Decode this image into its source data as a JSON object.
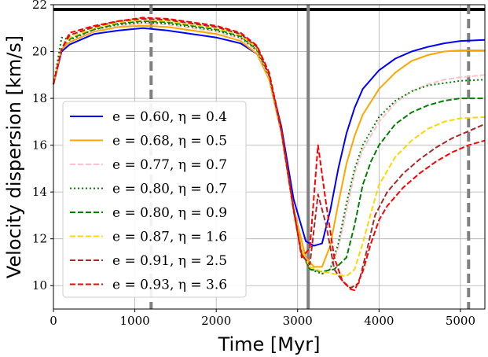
{
  "chart_data": {
    "type": "line",
    "xlabel": "Time [Myr]",
    "ylabel": "Velocity dispersion [km/s]",
    "xlim": [
      0,
      5300
    ],
    "ylim": [
      9,
      22
    ],
    "xticks": [
      0,
      1000,
      2000,
      3000,
      4000,
      5000
    ],
    "yticks": [
      10,
      12,
      14,
      16,
      18,
      20,
      22
    ],
    "grid": true,
    "legend_position": "lower-left",
    "hlines": [
      {
        "y": 21.8,
        "color": "#000000",
        "style": "solid"
      }
    ],
    "vlines": [
      {
        "x": 1200,
        "color": "#808080",
        "style": "dashed"
      },
      {
        "x": 3130,
        "color": "#808080",
        "style": "solid"
      },
      {
        "x": 5100,
        "color": "#808080",
        "style": "dashed"
      }
    ],
    "series": [
      {
        "name": "e = 0.60, η = 0.4",
        "color": "#0000ff",
        "dash": "solid",
        "x": [
          0,
          100,
          200,
          500,
          800,
          1100,
          1400,
          1700,
          2000,
          2300,
          2500,
          2650,
          2800,
          2950,
          3100,
          3200,
          3300,
          3400,
          3500,
          3600,
          3700,
          3800,
          4000,
          4200,
          4400,
          4600,
          4800,
          5000,
          5300
        ],
        "y": [
          18.6,
          20.0,
          20.3,
          20.75,
          20.9,
          21.0,
          20.9,
          20.75,
          20.6,
          20.35,
          19.9,
          18.9,
          16.8,
          13.7,
          11.9,
          11.7,
          11.8,
          13.2,
          15.0,
          16.5,
          17.6,
          18.4,
          19.2,
          19.7,
          20.0,
          20.2,
          20.35,
          20.45,
          20.5
        ]
      },
      {
        "name": "e = 0.68, η = 0.5",
        "color": "#ffa500",
        "dash": "solid",
        "x": [
          0,
          100,
          200,
          500,
          800,
          1100,
          1400,
          1700,
          2000,
          2300,
          2500,
          2650,
          2800,
          2950,
          3100,
          3200,
          3300,
          3400,
          3500,
          3600,
          3700,
          3800,
          4000,
          4200,
          4400,
          4600,
          4800,
          5000,
          5300
        ],
        "y": [
          18.6,
          20.1,
          20.4,
          20.85,
          21.05,
          21.1,
          21.05,
          20.9,
          20.75,
          20.45,
          19.9,
          18.8,
          16.5,
          13.3,
          11.2,
          10.8,
          10.8,
          11.7,
          13.5,
          15.2,
          16.4,
          17.3,
          18.4,
          19.1,
          19.6,
          19.85,
          20.0,
          20.05,
          20.05
        ]
      },
      {
        "name": "e = 0.77, η = 0.7",
        "color": "#ffc0cb",
        "dash": "dashed",
        "x": [
          0,
          100,
          200,
          500,
          800,
          1100,
          1400,
          1700,
          2000,
          2300,
          2500,
          2650,
          2800,
          2950,
          3050,
          3150,
          3300,
          3400,
          3500,
          3600,
          3700,
          3800,
          4000,
          4200,
          4400,
          4600,
          4800,
          5000,
          5300
        ],
        "y": [
          18.6,
          20.1,
          20.5,
          20.9,
          21.1,
          21.2,
          21.15,
          21.0,
          20.85,
          20.55,
          20.0,
          18.9,
          16.5,
          13.2,
          11.5,
          10.8,
          10.5,
          10.7,
          11.6,
          13.2,
          14.8,
          15.8,
          17.0,
          17.8,
          18.3,
          18.6,
          18.8,
          18.9,
          19.0
        ]
      },
      {
        "name": "e = 0.80, η = 0.7",
        "color": "#008000",
        "dash": "dotted",
        "x": [
          0,
          100,
          200,
          500,
          800,
          1100,
          1400,
          1700,
          2000,
          2300,
          2500,
          2650,
          2800,
          2950,
          3050,
          3150,
          3300,
          3400,
          3500,
          3600,
          3700,
          3800,
          4000,
          4200,
          4400,
          4600,
          4800,
          5000,
          5300
        ],
        "y": [
          18.6,
          20.6,
          20.5,
          20.95,
          21.15,
          21.25,
          21.2,
          21.05,
          20.9,
          20.6,
          20.05,
          18.95,
          16.6,
          13.3,
          11.5,
          10.7,
          10.5,
          10.7,
          11.8,
          13.5,
          15.0,
          16.0,
          17.2,
          17.9,
          18.3,
          18.55,
          18.65,
          18.75,
          18.8
        ]
      },
      {
        "name": "e = 0.80, η = 0.9",
        "color": "#008000",
        "dash": "dashed",
        "x": [
          0,
          100,
          200,
          500,
          800,
          1100,
          1400,
          1700,
          2000,
          2300,
          2500,
          2650,
          2800,
          2950,
          3050,
          3150,
          3300,
          3450,
          3600,
          3700,
          3800,
          3900,
          4000,
          4200,
          4400,
          4600,
          4800,
          5000,
          5300
        ],
        "y": [
          18.6,
          20.1,
          20.55,
          20.95,
          21.2,
          21.3,
          21.25,
          21.1,
          20.95,
          20.65,
          20.1,
          19.0,
          16.6,
          13.2,
          11.4,
          10.7,
          10.6,
          10.7,
          11.2,
          12.6,
          14.3,
          15.3,
          16.0,
          16.9,
          17.4,
          17.7,
          17.9,
          18.0,
          18.0
        ]
      },
      {
        "name": "e = 0.87, η = 1.6",
        "color": "#ffd700",
        "dash": "dashed",
        "x": [
          0,
          100,
          200,
          500,
          800,
          1100,
          1400,
          1700,
          2000,
          2300,
          2500,
          2650,
          2800,
          2950,
          3050,
          3150,
          3300,
          3450,
          3600,
          3700,
          3800,
          3900,
          4000,
          4200,
          4400,
          4600,
          4800,
          5000,
          5300
        ],
        "y": [
          18.6,
          20.1,
          20.6,
          21.0,
          21.25,
          21.35,
          21.3,
          21.15,
          21.0,
          20.7,
          20.15,
          19.0,
          16.6,
          13.2,
          11.5,
          10.8,
          10.6,
          10.5,
          10.4,
          10.7,
          11.8,
          13.1,
          14.3,
          15.5,
          16.2,
          16.7,
          17.0,
          17.15,
          17.2
        ]
      },
      {
        "name": "e = 0.91, η = 2.5",
        "color": "#a52a2a",
        "dash": "dashed",
        "x": [
          0,
          100,
          200,
          500,
          800,
          1100,
          1400,
          1700,
          2000,
          2300,
          2500,
          2650,
          2800,
          2950,
          3050,
          3150,
          3250,
          3350,
          3450,
          3550,
          3650,
          3750,
          3850,
          3950,
          4100,
          4300,
          4500,
          4700,
          4900,
          5100,
          5300
        ],
        "y": [
          18.6,
          20.1,
          20.7,
          21.05,
          21.3,
          21.4,
          21.35,
          21.2,
          21.05,
          20.75,
          20.2,
          19.0,
          16.6,
          13.2,
          11.3,
          10.9,
          13.9,
          12.6,
          10.7,
          10.2,
          9.9,
          10.1,
          11.5,
          13.0,
          14.0,
          14.8,
          15.4,
          15.9,
          16.3,
          16.6,
          16.9
        ]
      },
      {
        "name": "e = 0.93, η = 3.6",
        "color": "#ff0000",
        "dash": "dashed",
        "x": [
          0,
          100,
          200,
          500,
          800,
          1100,
          1400,
          1700,
          2000,
          2300,
          2500,
          2650,
          2800,
          2950,
          3050,
          3150,
          3250,
          3350,
          3450,
          3550,
          3650,
          3700,
          3800,
          3900,
          4000,
          4100,
          4300,
          4500,
          4700,
          4900,
          5100,
          5300
        ],
        "y": [
          18.6,
          20.1,
          20.8,
          21.1,
          21.3,
          21.45,
          21.4,
          21.25,
          21.1,
          20.8,
          20.25,
          19.1,
          16.7,
          13.3,
          11.2,
          11.6,
          16.0,
          13.5,
          11.2,
          10.2,
          9.85,
          9.8,
          10.6,
          11.8,
          12.8,
          13.4,
          14.2,
          14.8,
          15.3,
          15.7,
          16.0,
          16.2
        ]
      }
    ]
  }
}
